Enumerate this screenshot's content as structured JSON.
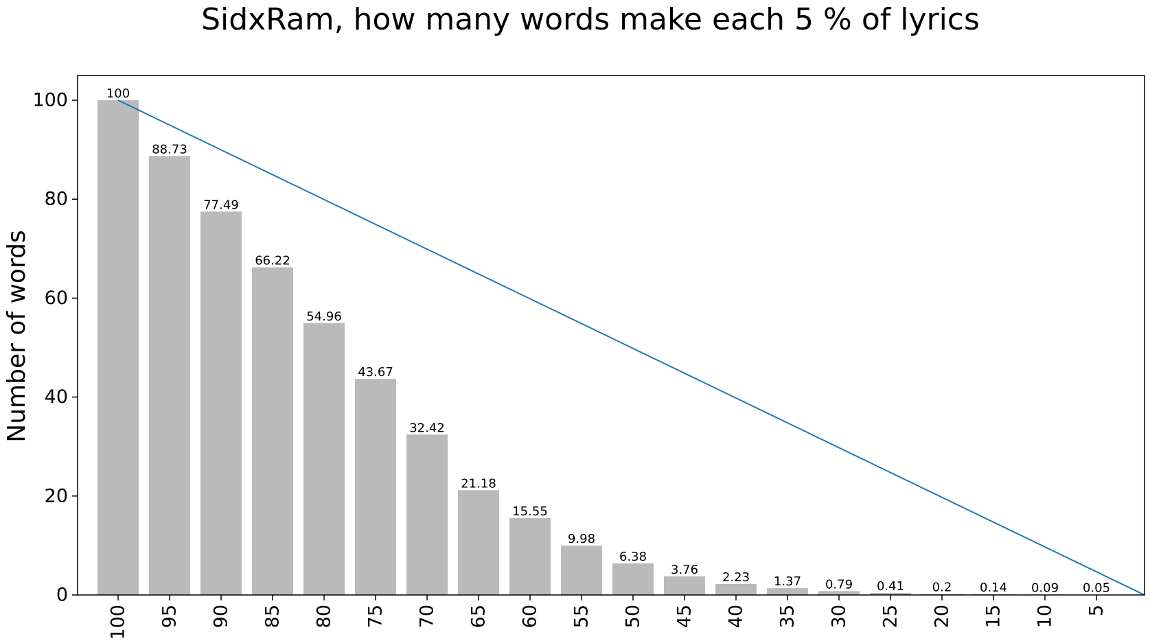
{
  "chart_data": {
    "type": "bar",
    "title": "SidxRam, how many words make each 5 % of lyrics",
    "xlabel": "",
    "ylabel": "Number of words",
    "categories": [
      "100",
      "95",
      "90",
      "85",
      "80",
      "75",
      "70",
      "65",
      "60",
      "55",
      "50",
      "45",
      "40",
      "35",
      "30",
      "25",
      "20",
      "15",
      "10",
      "5"
    ],
    "values": [
      100,
      88.73,
      77.49,
      66.22,
      54.96,
      43.67,
      32.42,
      21.18,
      15.55,
      9.98,
      6.38,
      3.76,
      2.23,
      1.37,
      0.79,
      0.41,
      0.2,
      0.14,
      0.09,
      0.05
    ],
    "value_labels": [
      "100",
      "88.73",
      "77.49",
      "66.22",
      "54.96",
      "43.67",
      "32.42",
      "21.18",
      "15.55",
      "9.98",
      "6.38",
      "3.76",
      "2.23",
      "1.37",
      "0.79",
      "0.41",
      "0.2",
      "0.14",
      "0.09",
      "0.05"
    ],
    "reference_line": {
      "from": 100,
      "to": 0
    },
    "ylim": [
      0,
      105
    ],
    "yticks": [
      0,
      20,
      40,
      60,
      80,
      100
    ],
    "grid": false,
    "bar_color": "#bababa",
    "line_color": "#1f77b4"
  }
}
